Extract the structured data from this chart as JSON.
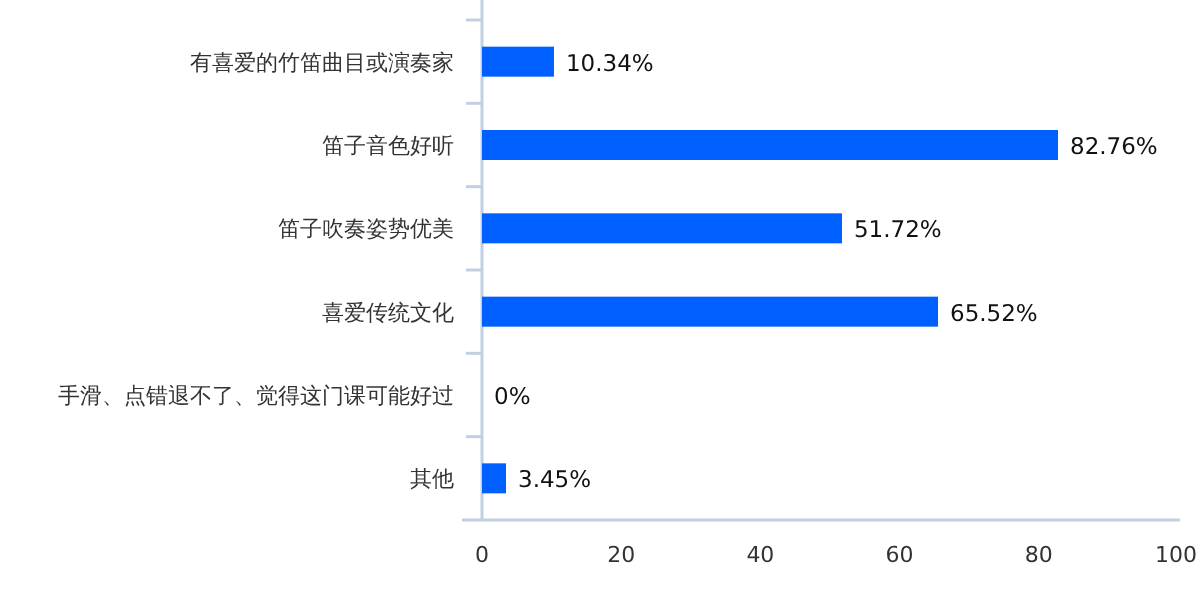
{
  "chart_data": {
    "type": "bar",
    "orientation": "horizontal",
    "categories": [
      "有喜爱的竹笛曲目或演奏家",
      "笛子音色好听",
      "笛子吹奏姿势优美",
      "喜爱传统文化",
      "手滑、点错退不了、觉得这门课可能好过",
      "其他"
    ],
    "values": [
      10.34,
      82.76,
      51.72,
      65.52,
      0,
      3.45
    ],
    "value_labels": [
      "10.34%",
      "82.76%",
      "51.72%",
      "65.52%",
      "0%",
      "3.45%"
    ],
    "color": "#0060ff",
    "xlim": [
      0,
      100
    ],
    "xticks": [
      0,
      20,
      40,
      60,
      80,
      100
    ],
    "grid": false
  }
}
